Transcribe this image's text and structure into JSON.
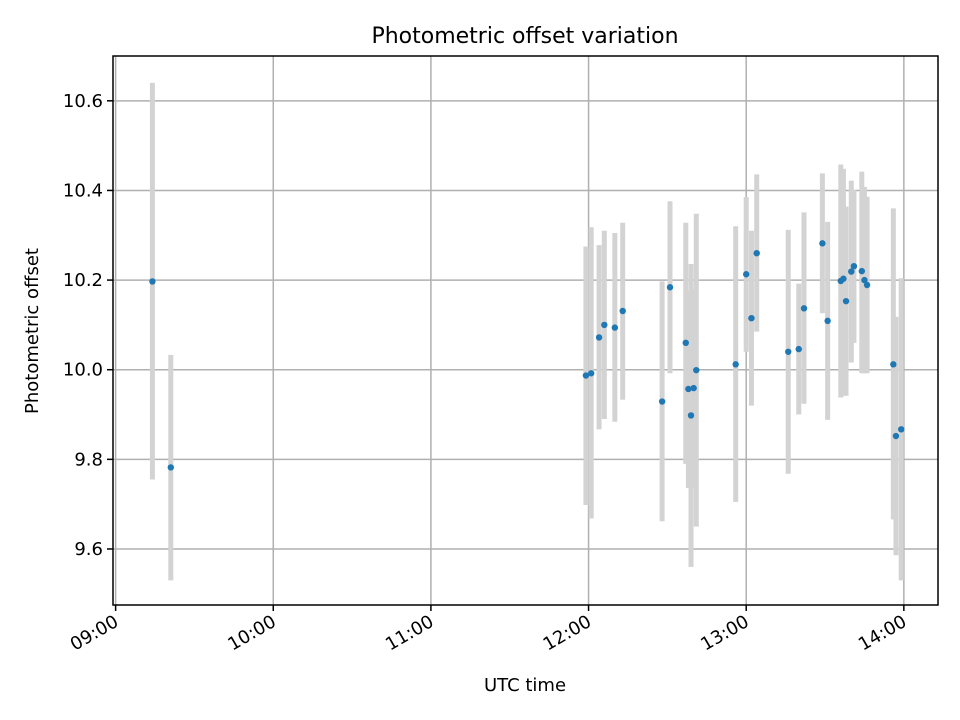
{
  "chart_data": {
    "type": "scatter",
    "title": "Photometric offset variation",
    "xlabel": "UTC time",
    "ylabel": "Photometric offset",
    "x_is_time": true,
    "xlim": [
      "08:59",
      "14:13"
    ],
    "ylim": [
      9.475,
      10.7
    ],
    "x_ticks": [
      "09:00",
      "10:00",
      "11:00",
      "12:00",
      "13:00",
      "14:00"
    ],
    "y_ticks": [
      9.6,
      9.8,
      10.0,
      10.2,
      10.4,
      10.6
    ],
    "y_tick_labels": [
      "9.6",
      "9.8",
      "10.0",
      "10.2",
      "10.4",
      "10.6"
    ],
    "grid": true,
    "series": [
      {
        "color": "#1f77b4",
        "errorbar_color": "#d3d3d3",
        "points": [
          {
            "x": "09:14",
            "y": 10.197,
            "ylow": 9.755,
            "yhigh": 10.64
          },
          {
            "x": "09:21",
            "y": 9.782,
            "ylow": 9.53,
            "yhigh": 10.033
          },
          {
            "x": "11:59",
            "y": 9.987,
            "ylow": 9.698,
            "yhigh": 10.275
          },
          {
            "x": "12:01",
            "y": 9.992,
            "ylow": 9.668,
            "yhigh": 10.318
          },
          {
            "x": "12:04",
            "y": 10.072,
            "ylow": 9.867,
            "yhigh": 10.278
          },
          {
            "x": "12:06",
            "y": 10.1,
            "ylow": 9.89,
            "yhigh": 10.31
          },
          {
            "x": "12:10",
            "y": 10.094,
            "ylow": 9.884,
            "yhigh": 10.305
          },
          {
            "x": "12:13",
            "y": 10.131,
            "ylow": 9.933,
            "yhigh": 10.328
          },
          {
            "x": "12:28",
            "y": 9.929,
            "ylow": 9.662,
            "yhigh": 10.197
          },
          {
            "x": "12:31",
            "y": 10.184,
            "ylow": 9.992,
            "yhigh": 10.376
          },
          {
            "x": "12:37",
            "y": 10.06,
            "ylow": 9.79,
            "yhigh": 10.328
          },
          {
            "x": "12:38",
            "y": 9.957,
            "ylow": 9.736,
            "yhigh": 10.176
          },
          {
            "x": "12:39",
            "y": 9.898,
            "ylow": 9.56,
            "yhigh": 10.236
          },
          {
            "x": "12:40",
            "y": 9.959,
            "ylow": 9.738,
            "yhigh": 10.18
          },
          {
            "x": "12:41",
            "y": 9.999,
            "ylow": 9.65,
            "yhigh": 10.348
          },
          {
            "x": "12:56",
            "y": 10.012,
            "ylow": 9.705,
            "yhigh": 10.32
          },
          {
            "x": "13:00",
            "y": 10.213,
            "ylow": 10.04,
            "yhigh": 10.385
          },
          {
            "x": "13:02",
            "y": 10.115,
            "ylow": 9.92,
            "yhigh": 10.31
          },
          {
            "x": "13:04",
            "y": 10.26,
            "ylow": 10.085,
            "yhigh": 10.436
          },
          {
            "x": "13:16",
            "y": 10.04,
            "ylow": 9.768,
            "yhigh": 10.312
          },
          {
            "x": "13:20",
            "y": 10.046,
            "ylow": 9.9,
            "yhigh": 10.192
          },
          {
            "x": "13:22",
            "y": 10.137,
            "ylow": 9.924,
            "yhigh": 10.351
          },
          {
            "x": "13:29",
            "y": 10.282,
            "ylow": 10.126,
            "yhigh": 10.438
          },
          {
            "x": "13:31",
            "y": 10.109,
            "ylow": 9.888,
            "yhigh": 10.33
          },
          {
            "x": "13:36",
            "y": 10.198,
            "ylow": 9.938,
            "yhigh": 10.458
          },
          {
            "x": "13:37",
            "y": 10.203,
            "ylow": 9.942,
            "yhigh": 10.448
          },
          {
            "x": "13:38",
            "y": 10.153,
            "ylow": 9.942,
            "yhigh": 10.364
          },
          {
            "x": "13:40",
            "y": 10.219,
            "ylow": 10.016,
            "yhigh": 10.422
          },
          {
            "x": "13:41",
            "y": 10.231,
            "ylow": 10.06,
            "yhigh": 10.402
          },
          {
            "x": "13:44",
            "y": 10.22,
            "ylow": 9.992,
            "yhigh": 10.442
          },
          {
            "x": "13:45",
            "y": 10.2,
            "ylow": 9.992,
            "yhigh": 10.408
          },
          {
            "x": "13:46",
            "y": 10.189,
            "ylow": 9.992,
            "yhigh": 10.386
          },
          {
            "x": "13:56",
            "y": 10.012,
            "ylow": 9.666,
            "yhigh": 10.36
          },
          {
            "x": "13:57",
            "y": 9.852,
            "ylow": 9.586,
            "yhigh": 10.118
          },
          {
            "x": "13:59",
            "y": 9.867,
            "ylow": 9.53,
            "yhigh": 10.204
          }
        ]
      }
    ]
  }
}
